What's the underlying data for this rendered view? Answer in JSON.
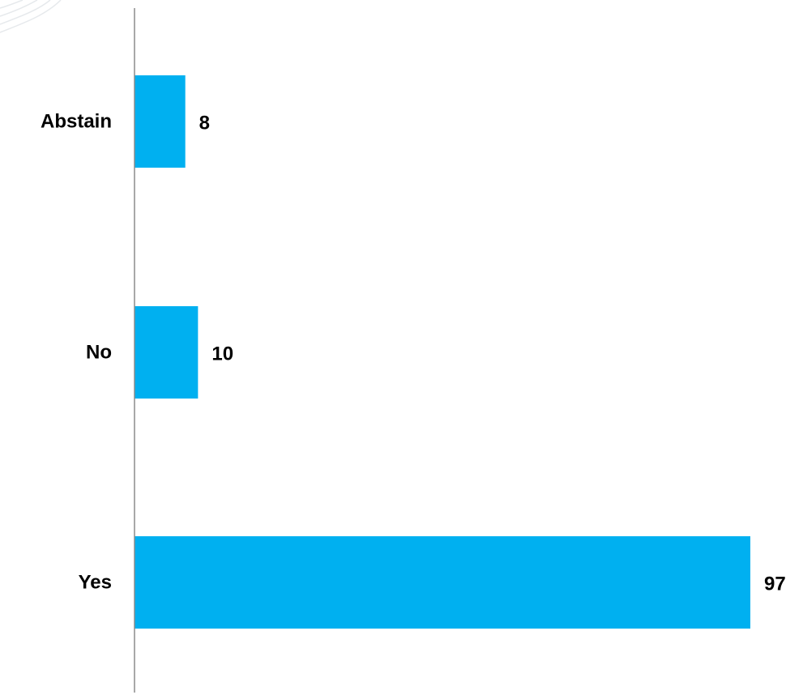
{
  "chart_data": {
    "type": "bar",
    "orientation": "horizontal",
    "title": "",
    "xlabel": "",
    "ylabel": "",
    "categories": [
      "Abstain",
      "No",
      "Yes"
    ],
    "values": [
      8,
      10,
      97
    ],
    "xlim": [
      0,
      97
    ],
    "grid": false,
    "legend": "none",
    "data_labels": true,
    "colors": {
      "bar": "#00B0F0",
      "axis": "#8c8c8c",
      "text": "#000000",
      "watermark": "#e6e9ec"
    }
  }
}
